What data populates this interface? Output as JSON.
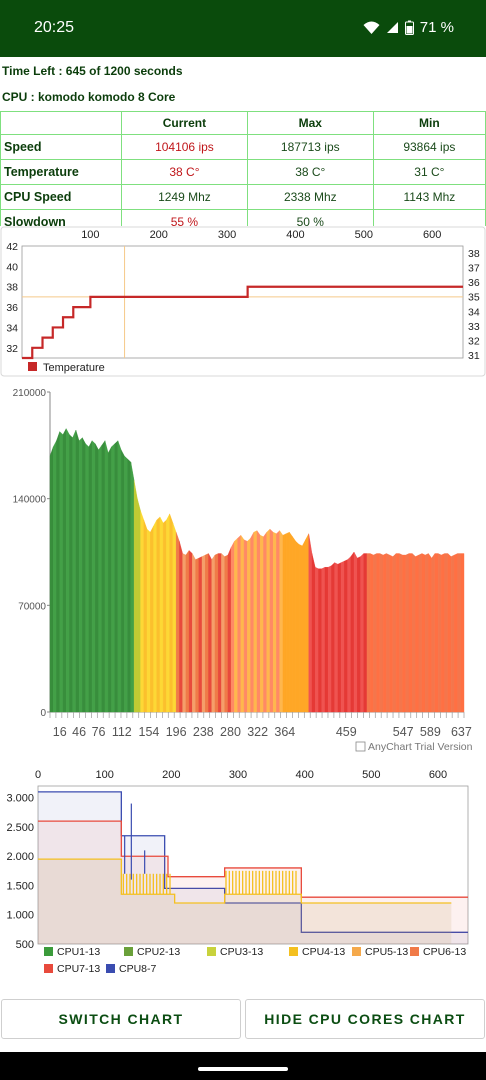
{
  "status_bar": {
    "time": "20:25",
    "battery": "71 %"
  },
  "info": {
    "time_left": "Time Left : 645 of 1200 seconds",
    "cpu": "CPU : komodo komodo 8 Core"
  },
  "table": {
    "headers": [
      "",
      "Current",
      "Max",
      "Min"
    ],
    "rows": [
      {
        "label": "Speed",
        "current": "104106 ips",
        "max": "187713 ips",
        "min": "93864 ips"
      },
      {
        "label": "Temperature",
        "current": "38 C°",
        "max": "38 C°",
        "min": "31 C°"
      },
      {
        "label": "CPU Speed",
        "current": "1249 Mhz",
        "max": "2338 Mhz",
        "min": "1143 Mhz"
      },
      {
        "label": "Slowdown",
        "current": "55 %",
        "max": "50 %",
        "min": ""
      }
    ]
  },
  "chart_data": [
    {
      "type": "line",
      "title": "",
      "series": [
        {
          "name": "Temperature",
          "x": [
            0,
            15,
            30,
            45,
            60,
            75,
            100,
            130,
            135,
            300,
            330,
            400,
            450,
            500,
            550,
            600,
            645
          ],
          "values": [
            31,
            32,
            33,
            34,
            35,
            36,
            37,
            37,
            37,
            37,
            38,
            38,
            38,
            38,
            38,
            38,
            38
          ]
        }
      ],
      "x_ticks": [
        "100",
        "200",
        "300",
        "400",
        "500",
        "600"
      ],
      "y_ticks_left": [
        "42",
        "40",
        "38",
        "36",
        "34",
        "32"
      ],
      "y_ticks_right": [
        "38",
        "37",
        "36",
        "35",
        "34",
        "33",
        "32",
        "31"
      ],
      "xlim": [
        0,
        645
      ],
      "ylim": [
        31,
        42
      ],
      "crosshair_x": 150,
      "crosshair_y": 37,
      "legend_position": "bottom-left",
      "color": "#c62828"
    },
    {
      "type": "area",
      "title": "",
      "x": [
        1,
        6,
        11,
        16,
        21,
        26,
        31,
        36,
        41,
        46,
        51,
        56,
        61,
        66,
        71,
        76,
        81,
        86,
        91,
        96,
        101,
        106,
        111,
        116,
        121,
        126,
        131,
        136,
        141,
        146,
        151,
        156,
        161,
        166,
        171,
        176,
        181,
        186,
        191,
        196,
        201,
        206,
        211,
        216,
        221,
        226,
        231,
        236,
        241,
        246,
        251,
        256,
        261,
        266,
        271,
        276,
        281,
        286,
        291,
        296,
        301,
        306,
        311,
        316,
        321,
        326,
        331,
        336,
        341,
        346,
        351,
        356,
        361,
        366,
        371,
        376,
        381,
        386,
        391,
        396,
        401,
        406,
        411,
        416,
        421,
        426,
        431,
        436,
        441,
        446,
        451,
        456,
        461,
        466,
        471,
        476,
        481,
        486,
        491,
        496,
        501,
        506,
        511,
        516,
        521,
        526,
        531,
        536,
        541,
        546,
        551,
        556,
        561,
        566,
        571,
        576,
        581,
        586,
        591,
        596,
        601,
        606,
        611,
        616,
        621,
        626,
        631,
        636,
        641
      ],
      "values": [
        168000,
        174000,
        178000,
        184000,
        182000,
        186000,
        182000,
        180000,
        185000,
        178000,
        180000,
        176000,
        174000,
        178000,
        176000,
        172000,
        175000,
        178000,
        170000,
        174000,
        176000,
        178000,
        172000,
        168000,
        166000,
        164000,
        152000,
        140000,
        132000,
        126000,
        120000,
        118000,
        122000,
        126000,
        128000,
        124000,
        126000,
        130000,
        124000,
        118000,
        112000,
        104000,
        103000,
        106000,
        104000,
        100000,
        101000,
        102000,
        103000,
        104000,
        100000,
        103000,
        104000,
        104000,
        102000,
        103000,
        108000,
        112000,
        114000,
        116000,
        113000,
        112000,
        114000,
        118000,
        119000,
        116000,
        115000,
        118000,
        120000,
        118000,
        117000,
        119000,
        116000,
        117000,
        118000,
        115000,
        112000,
        110000,
        109000,
        113000,
        117000,
        104000,
        95000,
        94000,
        94000,
        95000,
        95000,
        96000,
        98000,
        97000,
        98000,
        99000,
        100000,
        102000,
        105000,
        101000,
        102000,
        104000,
        104000,
        104000,
        103000,
        104000,
        104000,
        103000,
        104000,
        103000,
        102000,
        104000,
        104000,
        103000,
        103000,
        104000,
        104000,
        102000,
        103000,
        104000,
        103000,
        104000,
        101000,
        104000,
        104000,
        103000,
        104000,
        104000,
        102000,
        103000,
        104000,
        104000,
        104000
      ],
      "x_ticks": [
        "16",
        "46",
        "76",
        "112",
        "154",
        "196",
        "238",
        "280",
        "322",
        "364",
        "459",
        "547",
        "589",
        "637"
      ],
      "y_ticks": [
        "210000",
        "140000",
        "70000",
        "0"
      ],
      "ylim": [
        0,
        210000
      ],
      "watermark": "AnyChart Trial Version"
    },
    {
      "type": "line",
      "title": "",
      "x_ticks": [
        "0",
        "100",
        "200",
        "300",
        "400",
        "500",
        "600"
      ],
      "y_ticks": [
        "3.000",
        "2.500",
        "2.000",
        "1.500",
        "1.000",
        "500"
      ],
      "xlim": [
        0,
        645
      ],
      "ylim": [
        500,
        3200
      ],
      "legend": [
        "CPU1-13",
        "CPU2-13",
        "CPU3-13",
        "CPU4-13",
        "CPU5-13",
        "CPU6-13",
        "CPU7-13",
        "CPU8-7"
      ],
      "legend_colors": [
        "#3b9b3b",
        "#6aa03a",
        "#c8d23c",
        "#f4c020",
        "#f5a94b",
        "#f07a48",
        "#e84a3c",
        "#3a4cb0"
      ],
      "series": [
        {
          "name": "CPU8-7",
          "x": [
            0,
            125,
            125,
            190,
            190,
            280,
            280,
            395,
            395,
            645
          ],
          "values": [
            3100,
            3100,
            2350,
            2350,
            1450,
            1450,
            1200,
            1200,
            700,
            700
          ],
          "color": "#3a4cb0"
        },
        {
          "name": "CPU7-13",
          "x": [
            0,
            125,
            125,
            195,
            195,
            280,
            280,
            395,
            395,
            645
          ],
          "values": [
            2600,
            2600,
            2000,
            2000,
            1650,
            1650,
            1800,
            1800,
            1300,
            1300
          ],
          "color": "#e84a3c"
        },
        {
          "name": "CPU4-13",
          "x": [
            0,
            125,
            125,
            205,
            205,
            280,
            280,
            395,
            395,
            620
          ],
          "values": [
            1950,
            1950,
            1350,
            1350,
            1200,
            1200,
            1350,
            1350,
            1200,
            1200
          ],
          "color": "#f4c020"
        }
      ]
    }
  ],
  "buttons": {
    "switch": "SWITCH CHART",
    "hide": "HIDE CPU CORES CHART"
  }
}
